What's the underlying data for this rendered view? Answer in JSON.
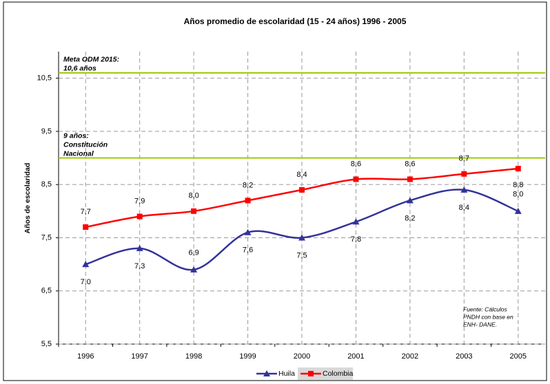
{
  "chart_data": {
    "type": "line",
    "title": "Años promedio de escolaridad (15 - 24 años) 1996 -  2005",
    "y_label": "Años de escolaridad",
    "categories": [
      "1996",
      "1997",
      "1998",
      "1999",
      "2000",
      "2001",
      "2002",
      "2003",
      "2005"
    ],
    "series": [
      {
        "name": "Huila",
        "color": "#333399",
        "marker": "triangle",
        "values": [
          7.0,
          7.3,
          6.9,
          7.6,
          7.5,
          7.8,
          8.2,
          8.4,
          8.0
        ],
        "value_labels": [
          "7,0",
          "7,3",
          "6,9",
          "7,6",
          "7,5",
          "7,8",
          "8,2",
          "8,4",
          "8,0"
        ]
      },
      {
        "name": "Colombia",
        "color": "#ff0000",
        "marker": "square",
        "values": [
          7.7,
          7.9,
          8.0,
          8.2,
          8.4,
          8.6,
          8.6,
          8.7,
          8.8
        ],
        "value_labels": [
          "7,7",
          "7,9",
          "8,0",
          "8,2",
          "8,4",
          "8,6",
          "8,6",
          "8,7",
          "8,8"
        ]
      }
    ],
    "ylim": [
      5.5,
      11.0
    ],
    "yticks": [
      {
        "value": 5.5,
        "label": "5,5"
      },
      {
        "value": 6.5,
        "label": "6,5"
      },
      {
        "value": 7.5,
        "label": "7,5"
      },
      {
        "value": 8.5,
        "label": "8,5"
      },
      {
        "value": 9.5,
        "label": "9,5"
      },
      {
        "value": 10.5,
        "label": "10,5"
      }
    ],
    "grid": true,
    "reference_lines": [
      {
        "value": 10.6,
        "color": "#99cc00",
        "label": [
          "Meta ODM 2015:",
          "10,6 años"
        ]
      },
      {
        "value": 9.0,
        "color": "#99cc00",
        "label": [
          "9 años:",
          "Constitución",
          "Nacional"
        ]
      }
    ],
    "source": [
      "Fuente: Cálculos",
      "PNDH con base en",
      "ENH- DANE."
    ],
    "legend": "bottom"
  }
}
